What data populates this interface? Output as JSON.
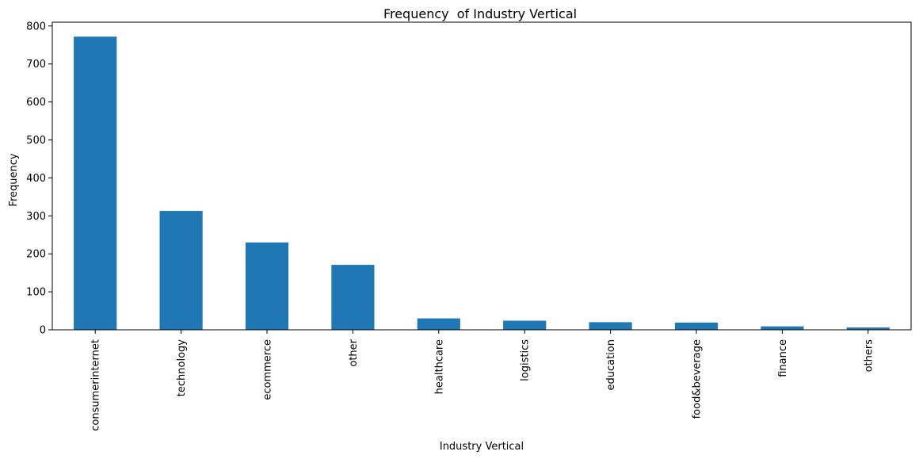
{
  "chart_data": {
    "type": "bar",
    "title": "Frequency  of Industry Vertical",
    "xlabel": "Industry Vertical",
    "ylabel": "Frequency",
    "categories": [
      "consumerinternet",
      "technology",
      "ecommerce",
      "other",
      "healthcare",
      "logistics",
      "education",
      "food&beverage",
      "finance",
      "others"
    ],
    "values": [
      772,
      313,
      230,
      171,
      30,
      24,
      20,
      19,
      9,
      6
    ],
    "yticks": [
      0,
      100,
      200,
      300,
      400,
      500,
      600,
      700,
      800
    ],
    "ylim": [
      0,
      810
    ],
    "bar_color": "#1f77b4",
    "grid": false,
    "legend": "none"
  }
}
